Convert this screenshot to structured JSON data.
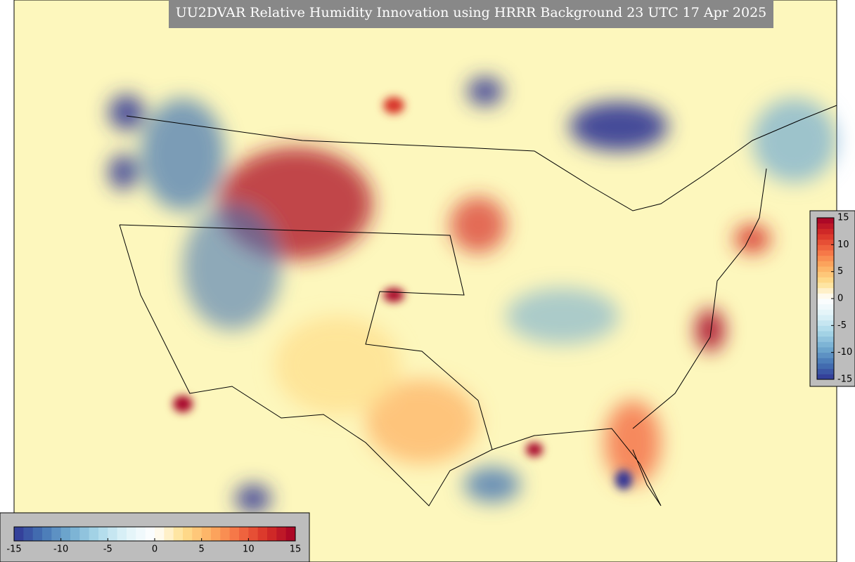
{
  "title": "UU2DVAR Relative Humidity Innovation using HRRR Background 23 UTC 17 Apr 2025",
  "colormap": [
    "#313695",
    "#4575b4",
    "#74add1",
    "#abd9e9",
    "#e0f3f8",
    "#ffffff",
    "#fee090",
    "#fdae61",
    "#f46d43",
    "#d73027",
    "#a50026"
  ],
  "colorbar_vertical": {
    "range": [
      -15,
      15
    ],
    "ticks": [
      -15,
      -10,
      -5,
      0,
      5,
      10,
      15
    ]
  },
  "colorbar_horizontal": {
    "range": [
      -15,
      15
    ],
    "ticks": [
      -15,
      -10,
      -5,
      0,
      5,
      10,
      15
    ]
  }
}
